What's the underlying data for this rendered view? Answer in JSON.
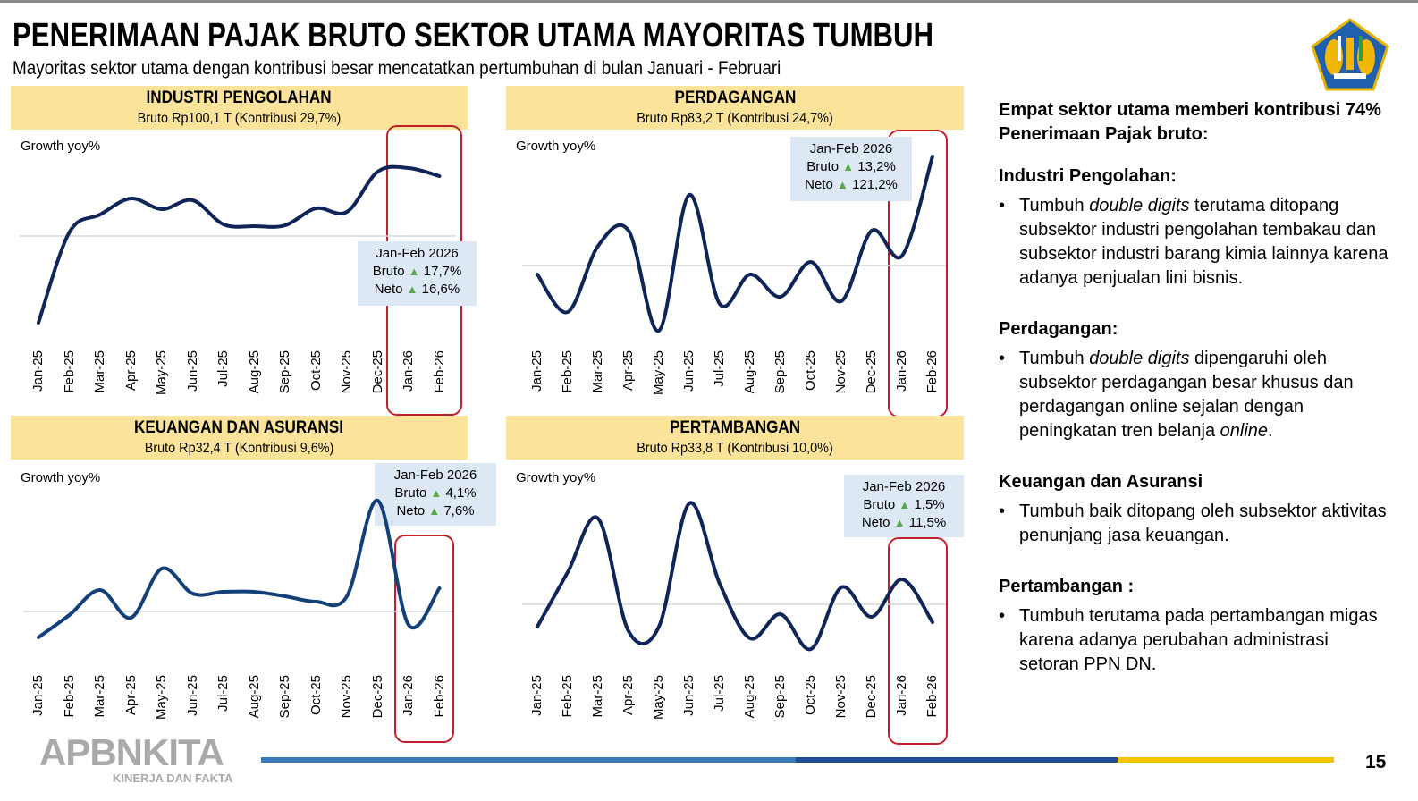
{
  "title": "PENERIMAAN PAJAK BRUTO SEKTOR UTAMA MAYORITAS TUMBUH",
  "subtitle": "Mayoritas sektor utama dengan kontribusi besar mencatatkan pertumbuhan di bulan Januari - Februari",
  "logo_icon": "kemenkeu-emblem-icon",
  "footer": {
    "brand": "APBNKITA",
    "tagline": "KINERJA DAN FAKTA",
    "page": "15",
    "bar_colors": [
      "#3a7ab8",
      "#1f4e99",
      "#f5c400"
    ]
  },
  "colors": {
    "line": "#0f2557",
    "header_bg": "#fbe49a",
    "highlight_box": "#c0202a",
    "annotation_bg": "#dde8f5",
    "up_arrow": "#5aa84a"
  },
  "chart_data": [
    {
      "type": "line",
      "title": "INDUSTRI PENGOLAHAN",
      "subtitle": "Bruto Rp100,1 T (Kontribusi 29,7%)",
      "ylabel": "Growth yoy%",
      "categories": [
        "Jan-25",
        "Feb-25",
        "Mar-25",
        "Apr-25",
        "May-25",
        "Jun-25",
        "Jul-25",
        "Aug-25",
        "Sep-25",
        "Oct-25",
        "Nov-25",
        "Dec-25",
        "Jan-26",
        "Feb-26"
      ],
      "values": [
        -9.7,
        0.4,
        2.4,
        4.2,
        3.0,
        4.0,
        1.3,
        1.1,
        1.2,
        3.1,
        2.7,
        7.2,
        7.6,
        6.7
      ],
      "grid": "single baseline",
      "highlight": [
        "Jan-26",
        "Feb-26"
      ],
      "annotation": {
        "period": "Jan-Feb 2026",
        "bruto_label": "Bruto",
        "bruto": "17,7%",
        "neto_label": "Neto",
        "neto": "16,6%"
      }
    },
    {
      "type": "line",
      "title": "PERDAGANGAN",
      "subtitle": "Bruto Rp83,2 T (Kontribusi 24,7%)",
      "ylabel": "Growth yoy%",
      "categories": [
        "Jan-25",
        "Feb-25",
        "Mar-25",
        "Apr-25",
        "May-25",
        "Jun-25",
        "Jul-25",
        "Aug-25",
        "Sep-25",
        "Oct-25",
        "Nov-25",
        "Dec-25",
        "Jan-26",
        "Feb-26"
      ],
      "values": [
        -1.0,
        -5.2,
        2.2,
        3.9,
        -7.3,
        7.9,
        -4.3,
        -1.0,
        -3.5,
        0.4,
        -4.0,
        3.9,
        1.1,
        12.2
      ],
      "grid": "single baseline",
      "highlight": [
        "Jan-26",
        "Feb-26"
      ],
      "annotation": {
        "period": "Jan-Feb 2026",
        "bruto_label": "Bruto",
        "bruto": "13,2%",
        "neto_label": "Neto",
        "neto": "121,2%"
      }
    },
    {
      "type": "line",
      "title": "KEUANGAN DAN ASURANSI",
      "subtitle": "Bruto Rp32,4 T (Kontribusi 9,6%)",
      "ylabel": "Growth yoy%",
      "categories": [
        "Jan-25",
        "Feb-25",
        "Mar-25",
        "Apr-25",
        "May-25",
        "Jun-25",
        "Jul-25",
        "Aug-25",
        "Sep-25",
        "Oct-25",
        "Nov-25",
        "Dec-25",
        "Jan-26",
        "Feb-26"
      ],
      "values": [
        -2.9,
        -0.4,
        2.4,
        -0.7,
        4.8,
        2.0,
        2.2,
        2.2,
        1.7,
        1.1,
        1.7,
        12.4,
        -1.5,
        2.6
      ],
      "grid": "single baseline",
      "highlight": [
        "Jan-26",
        "Feb-26"
      ],
      "annotation": {
        "period": "Jan-Feb 2026",
        "bruto_label": "Bruto",
        "bruto": "4,1%",
        "neto_label": "Neto",
        "neto": "7,6%"
      }
    },
    {
      "type": "line",
      "title": "PERTAMBANGAN",
      "subtitle": "Bruto Rp33,8 T (Kontribusi 10,0%)",
      "ylabel": "Growth yoy%",
      "categories": [
        "Jan-25",
        "Feb-25",
        "Mar-25",
        "Apr-25",
        "May-25",
        "Jun-25",
        "Jul-25",
        "Aug-25",
        "Sep-25",
        "Oct-25",
        "Nov-25",
        "Dec-25",
        "Jan-26",
        "Feb-26"
      ],
      "values": [
        -2.5,
        3.6,
        9.6,
        -3.0,
        -2.5,
        11.3,
        2.3,
        -3.8,
        -1.1,
        -5.0,
        1.9,
        -1.4,
        2.8,
        -2.0
      ],
      "grid": "single baseline",
      "highlight": [
        "Jan-26",
        "Feb-26"
      ],
      "annotation": {
        "period": "Jan-Feb 2026",
        "bruto_label": "Bruto",
        "bruto": "1,5%",
        "neto_label": "Neto",
        "neto": "11,5%"
      }
    }
  ],
  "summary": {
    "heading": "Empat sektor utama memberi kontribusi 74% Penerimaan Pajak bruto:",
    "sections": [
      {
        "title": "Industri Pengolahan:",
        "parts": [
          "Tumbuh ",
          "double digits",
          " terutama ditopang subsektor industri pengolahan tembakau dan subsektor industri barang kimia lainnya karena adanya penjualan lini bisnis."
        ]
      },
      {
        "title": "Perdagangan:",
        "parts": [
          "Tumbuh ",
          "double digits",
          " dipengaruhi oleh subsektor perdagangan besar khusus dan perdagangan online sejalan dengan peningkatan tren belanja ",
          "online",
          "."
        ]
      },
      {
        "title": "Keuangan dan Asuransi",
        "parts": [
          "Tumbuh baik ditopang oleh subsektor aktivitas penunjang jasa keuangan."
        ]
      },
      {
        "title": "Pertambangan :",
        "parts": [
          "Tumbuh terutama pada pertambangan migas karena adanya perubahan administrasi setoran PPN DN."
        ]
      }
    ]
  }
}
